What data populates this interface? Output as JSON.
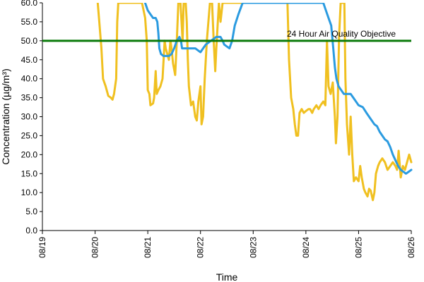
{
  "chart_data": {
    "type": "line",
    "xlabel": "Time",
    "ylabel": "Concentration (µg/m³)",
    "x_tick_labels": [
      "08/19",
      "08/20",
      "08/21",
      "08/22",
      "08/23",
      "08/24",
      "08/25",
      "08/26"
    ],
    "y_tick_labels": [
      "0.0",
      "5.0",
      "10.0",
      "15.0",
      "20.0",
      "25.0",
      "30.0",
      "35.0",
      "40.0",
      "45.0",
      "50.0",
      "55.0",
      "60.0"
    ],
    "xlim": [
      0,
      7
    ],
    "ylim": [
      0,
      60
    ],
    "grid": false,
    "legend": "none",
    "annotation": "24 Hour Air Quality Objective",
    "objective_value": 50,
    "colors": {
      "hourly": "#f0c020",
      "rolling": "#2b9be0",
      "objective": "#0a7a0a"
    },
    "series": [
      {
        "color": "#f0c020",
        "points": [
          [
            1.05,
            60
          ],
          [
            1.08,
            55
          ],
          [
            1.12,
            48
          ],
          [
            1.15,
            40
          ],
          [
            1.2,
            38
          ],
          [
            1.25,
            35.5
          ],
          [
            1.3,
            35
          ],
          [
            1.33,
            34.5
          ],
          [
            1.36,
            36
          ],
          [
            1.4,
            40
          ],
          [
            1.42,
            55
          ],
          [
            1.44,
            60
          ],
          [
            1.89,
            60
          ],
          [
            1.92,
            58
          ],
          [
            1.95,
            56
          ],
          [
            1.98,
            50
          ],
          [
            2.0,
            37
          ],
          [
            2.03,
            36
          ],
          [
            2.05,
            33
          ],
          [
            2.1,
            33.5
          ],
          [
            2.12,
            35
          ],
          [
            2.15,
            42
          ],
          [
            2.17,
            36
          ],
          [
            2.2,
            37
          ],
          [
            2.24,
            38
          ],
          [
            2.28,
            40
          ],
          [
            2.32,
            50
          ],
          [
            2.34,
            48
          ],
          [
            2.36,
            47
          ],
          [
            2.4,
            45
          ],
          [
            2.43,
            50
          ],
          [
            2.45,
            48
          ],
          [
            2.48,
            44
          ],
          [
            2.52,
            41
          ],
          [
            2.55,
            50
          ],
          [
            2.58,
            60
          ],
          [
            2.62,
            60
          ],
          [
            2.64,
            55
          ],
          [
            2.66,
            50
          ],
          [
            2.68,
            60
          ],
          [
            2.72,
            60
          ],
          [
            2.74,
            55
          ],
          [
            2.76,
            45
          ],
          [
            2.78,
            38
          ],
          [
            2.82,
            33
          ],
          [
            2.86,
            34
          ],
          [
            2.9,
            30
          ],
          [
            2.93,
            29
          ],
          [
            2.96,
            34
          ],
          [
            3.0,
            38
          ],
          [
            3.02,
            28
          ],
          [
            3.05,
            30
          ],
          [
            3.08,
            40
          ],
          [
            3.12,
            50
          ],
          [
            3.15,
            55
          ],
          [
            3.18,
            60
          ],
          [
            3.22,
            60
          ],
          [
            3.25,
            50
          ],
          [
            3.28,
            42
          ],
          [
            3.3,
            48
          ],
          [
            3.35,
            60
          ],
          [
            3.38,
            55
          ],
          [
            3.42,
            60
          ],
          [
            4.65,
            60
          ],
          [
            4.68,
            45
          ],
          [
            4.72,
            35
          ],
          [
            4.76,
            32
          ],
          [
            4.79,
            28
          ],
          [
            4.82,
            25
          ],
          [
            4.85,
            25
          ],
          [
            4.88,
            31
          ],
          [
            4.92,
            32
          ],
          [
            4.96,
            31
          ],
          [
            5.0,
            31.5
          ],
          [
            5.05,
            32
          ],
          [
            5.08,
            32
          ],
          [
            5.12,
            31
          ],
          [
            5.15,
            32
          ],
          [
            5.2,
            33
          ],
          [
            5.24,
            32
          ],
          [
            5.28,
            33
          ],
          [
            5.33,
            34
          ],
          [
            5.37,
            33
          ],
          [
            5.4,
            50
          ],
          [
            5.43,
            38
          ],
          [
            5.47,
            36
          ],
          [
            5.51,
            39
          ],
          [
            5.55,
            30
          ],
          [
            5.57,
            23
          ],
          [
            5.6,
            30
          ],
          [
            5.63,
            51
          ],
          [
            5.66,
            60
          ],
          [
            5.73,
            60
          ],
          [
            5.75,
            40
          ],
          [
            5.78,
            28
          ],
          [
            5.82,
            20
          ],
          [
            5.85,
            30
          ],
          [
            5.88,
            20
          ],
          [
            5.91,
            13
          ],
          [
            5.95,
            14
          ],
          [
            6.0,
            13
          ],
          [
            6.03,
            17
          ],
          [
            6.06,
            14
          ],
          [
            6.1,
            11
          ],
          [
            6.13,
            10
          ],
          [
            6.17,
            9
          ],
          [
            6.2,
            11
          ],
          [
            6.23,
            10.5
          ],
          [
            6.27,
            8
          ],
          [
            6.3,
            10
          ],
          [
            6.33,
            15
          ],
          [
            6.37,
            17
          ],
          [
            6.4,
            18
          ],
          [
            6.45,
            19
          ],
          [
            6.5,
            18
          ],
          [
            6.55,
            16
          ],
          [
            6.6,
            17
          ],
          [
            6.65,
            18
          ],
          [
            6.7,
            17
          ],
          [
            6.73,
            16
          ],
          [
            6.76,
            21
          ],
          [
            6.8,
            14
          ],
          [
            6.84,
            17
          ],
          [
            6.88,
            16
          ],
          [
            6.92,
            18
          ],
          [
            6.96,
            20
          ],
          [
            7.0,
            18
          ]
        ]
      },
      {
        "color": "#2b9be0",
        "points": [
          [
            1.95,
            60
          ],
          [
            2.0,
            58
          ],
          [
            2.05,
            57
          ],
          [
            2.1,
            56
          ],
          [
            2.15,
            56
          ],
          [
            2.18,
            55
          ],
          [
            2.2,
            52
          ],
          [
            2.22,
            48
          ],
          [
            2.25,
            46.5
          ],
          [
            2.3,
            46
          ],
          [
            2.4,
            46
          ],
          [
            2.45,
            46.5
          ],
          [
            2.5,
            48
          ],
          [
            2.55,
            50
          ],
          [
            2.6,
            51
          ],
          [
            2.63,
            50
          ],
          [
            2.65,
            48
          ],
          [
            2.7,
            48
          ],
          [
            2.8,
            48
          ],
          [
            2.9,
            48
          ],
          [
            2.95,
            47.5
          ],
          [
            3.0,
            47
          ],
          [
            3.05,
            48
          ],
          [
            3.1,
            49
          ],
          [
            3.2,
            50
          ],
          [
            3.3,
            51
          ],
          [
            3.38,
            51
          ],
          [
            3.42,
            50
          ],
          [
            3.45,
            49
          ],
          [
            3.5,
            48.5
          ],
          [
            3.55,
            48
          ],
          [
            3.6,
            50
          ],
          [
            3.65,
            54
          ],
          [
            3.72,
            57
          ],
          [
            3.8,
            60
          ],
          [
            5.33,
            60
          ],
          [
            5.38,
            58
          ],
          [
            5.43,
            56
          ],
          [
            5.48,
            54
          ],
          [
            5.52,
            48
          ],
          [
            5.55,
            43
          ],
          [
            5.58,
            40
          ],
          [
            5.62,
            38
          ],
          [
            5.67,
            37
          ],
          [
            5.72,
            36
          ],
          [
            5.8,
            36
          ],
          [
            5.85,
            36
          ],
          [
            5.9,
            35
          ],
          [
            6.0,
            33
          ],
          [
            6.08,
            32.5
          ],
          [
            6.15,
            31
          ],
          [
            6.2,
            30
          ],
          [
            6.3,
            28
          ],
          [
            6.35,
            27.5
          ],
          [
            6.4,
            26
          ],
          [
            6.5,
            24
          ],
          [
            6.55,
            23.5
          ],
          [
            6.6,
            22
          ],
          [
            6.65,
            20
          ],
          [
            6.7,
            18.5
          ],
          [
            6.75,
            17
          ],
          [
            6.8,
            16
          ],
          [
            6.85,
            15.5
          ],
          [
            6.9,
            15
          ],
          [
            6.95,
            15.5
          ],
          [
            7.0,
            16
          ]
        ]
      }
    ]
  }
}
